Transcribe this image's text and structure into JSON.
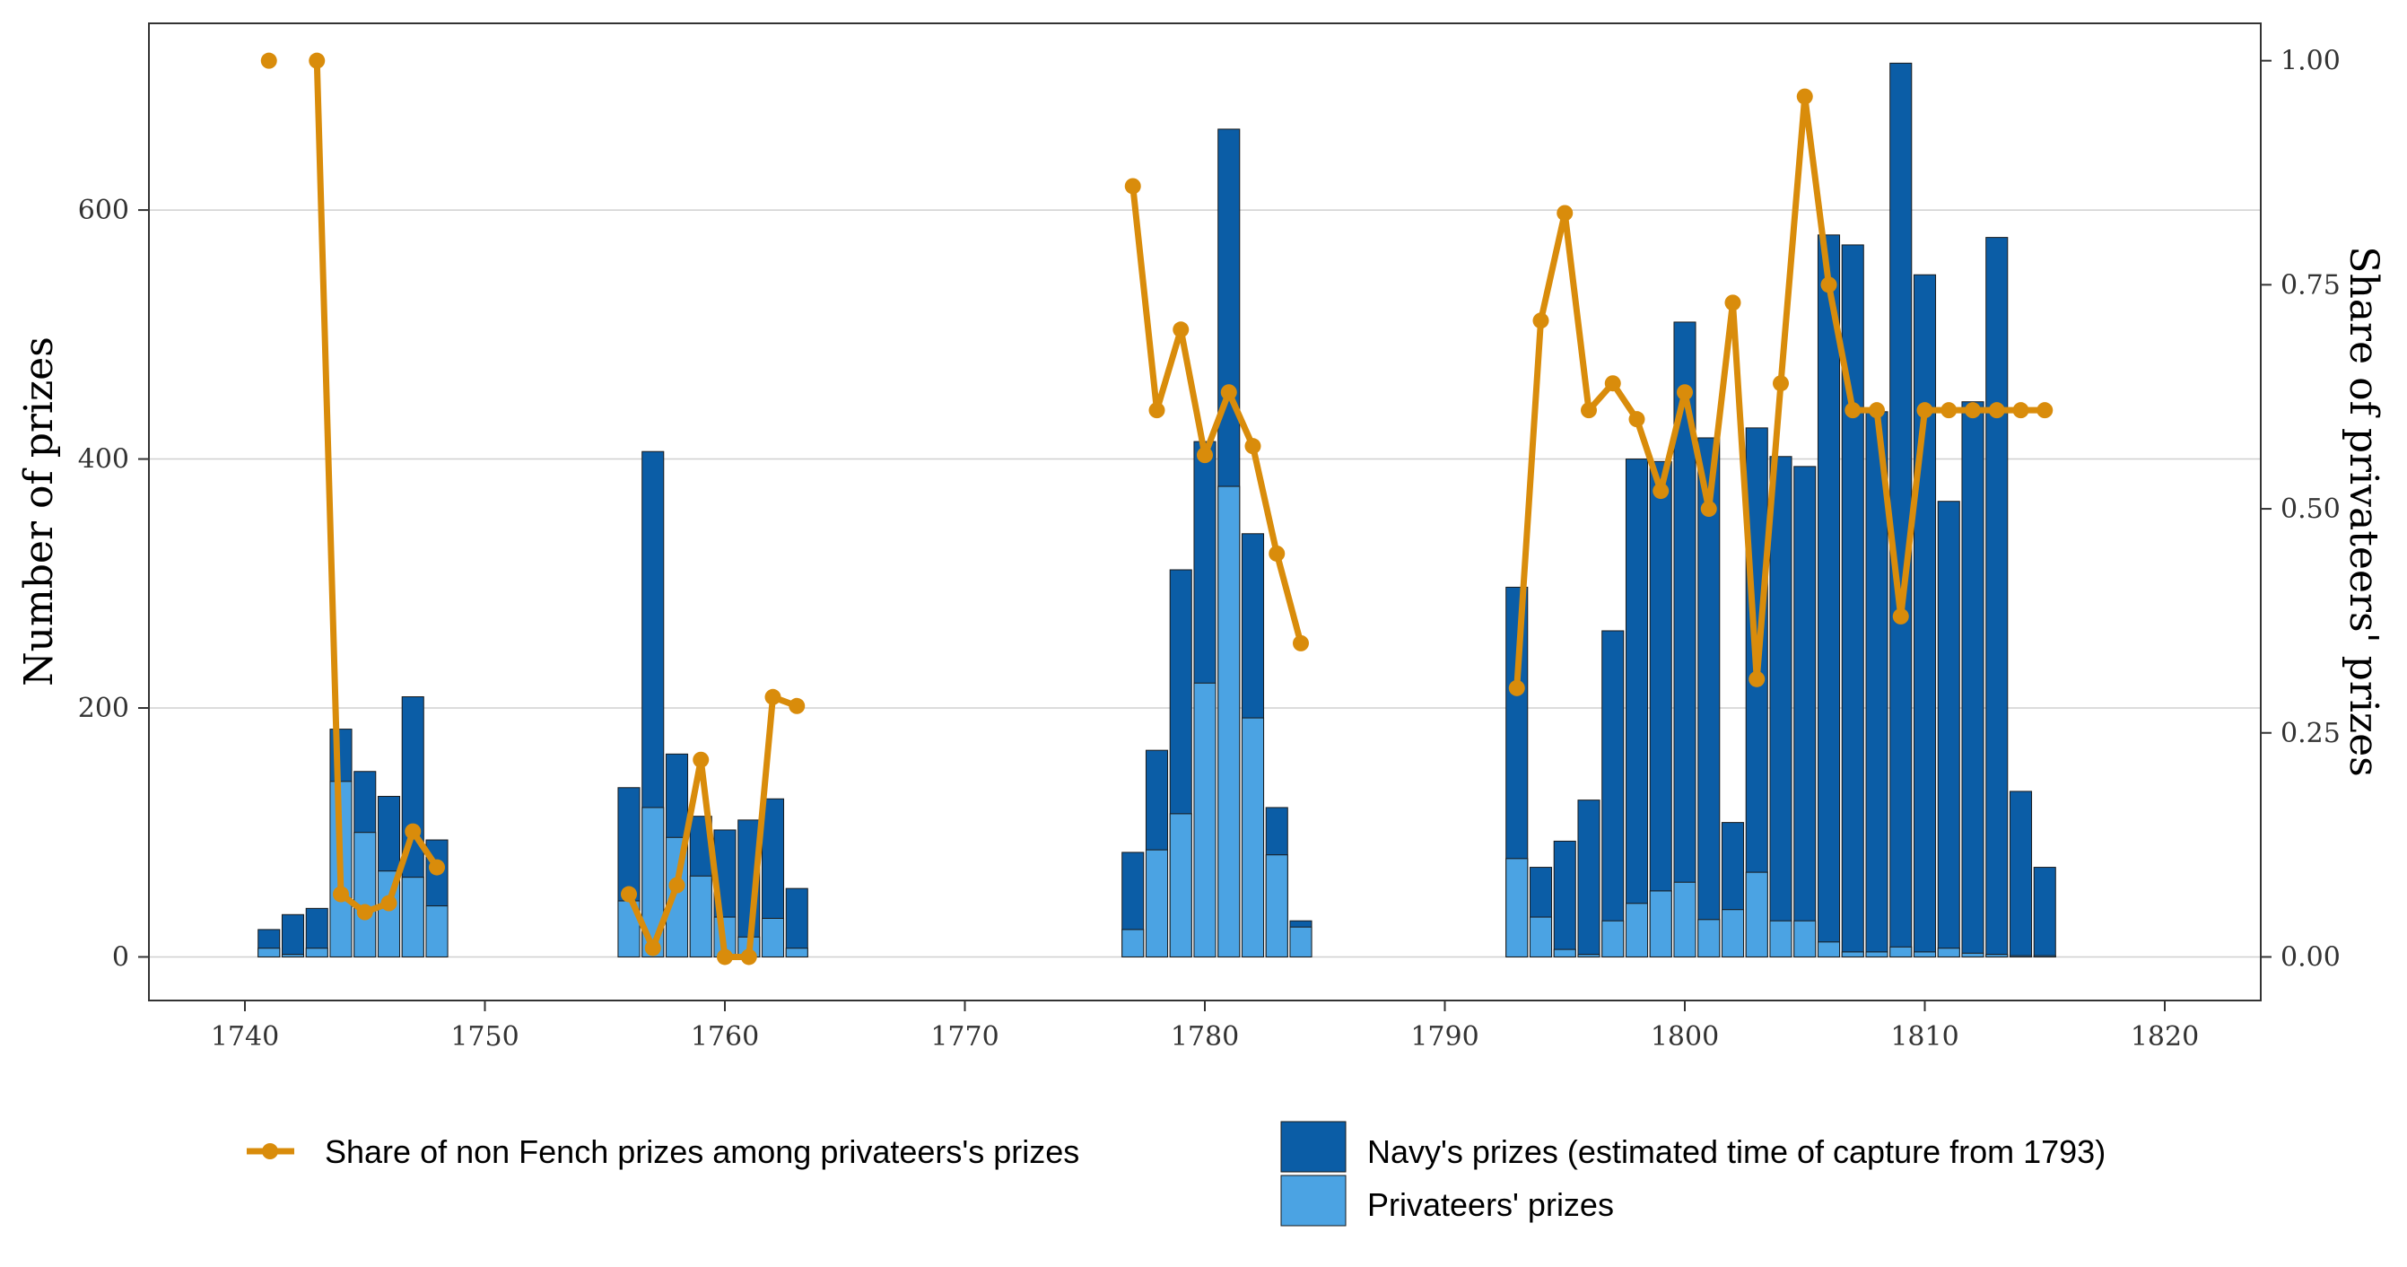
{
  "chart_data": {
    "type": "bar",
    "title": "",
    "xlabel": "",
    "ylabel": "Number of prizes",
    "y2label": "Share of privateers' prizes",
    "xlim": [
      1736,
      1824
    ],
    "ylim": [
      -35,
      750
    ],
    "y2lim": [
      -0.0486,
      1.0417
    ],
    "x_ticks": [
      1740,
      1750,
      1760,
      1770,
      1780,
      1790,
      1800,
      1810,
      1820
    ],
    "y_ticks": [
      0,
      200,
      400,
      600
    ],
    "y2_ticks": [
      0.0,
      0.25,
      0.5,
      0.75,
      1.0
    ],
    "y2_tick_labels": [
      "0.00",
      "0.25",
      "0.50",
      "0.75",
      "1.00"
    ],
    "grid": "horizontal",
    "legend_placement": "bottom",
    "colors": {
      "navy": "#0B5DA6",
      "privateers": "#4BA3E3",
      "share": "#D98C0B",
      "grid": "#D0D0D0",
      "bar_outline": "#1a1a1a"
    },
    "series": [
      {
        "name": "Navy's prizes (estimated time of capture from 1793)",
        "kind": "bar-total",
        "x": [
          1741,
          1742,
          1743,
          1744,
          1745,
          1746,
          1747,
          1748,
          1756,
          1757,
          1758,
          1759,
          1760,
          1761,
          1762,
          1763,
          1777,
          1778,
          1779,
          1780,
          1781,
          1782,
          1783,
          1784,
          1793,
          1794,
          1795,
          1796,
          1797,
          1798,
          1799,
          1800,
          1801,
          1802,
          1803,
          1804,
          1805,
          1806,
          1807,
          1808,
          1809,
          1810,
          1811,
          1812,
          1813,
          1814,
          1815
        ],
        "values": [
          22,
          34,
          39,
          183,
          149,
          129,
          209,
          94,
          136,
          406,
          163,
          113,
          102,
          110,
          127,
          55,
          84,
          166,
          311,
          414,
          665,
          340,
          120,
          29,
          297,
          72,
          93,
          126,
          262,
          400,
          398,
          510,
          417,
          108,
          425,
          402,
          394,
          580,
          572,
          438,
          718,
          548,
          366,
          446,
          578,
          133,
          72
        ]
      },
      {
        "name": "Privateers' prizes",
        "kind": "bar-sub",
        "x": [
          1741,
          1742,
          1743,
          1744,
          1745,
          1746,
          1747,
          1748,
          1756,
          1757,
          1758,
          1759,
          1760,
          1761,
          1762,
          1763,
          1777,
          1778,
          1779,
          1780,
          1781,
          1782,
          1783,
          1784,
          1793,
          1794,
          1795,
          1796,
          1797,
          1798,
          1799,
          1800,
          1801,
          1802,
          1803,
          1804,
          1805,
          1806,
          1807,
          1808,
          1809,
          1810,
          1811,
          1812,
          1813,
          1814,
          1815
        ],
        "values": [
          7,
          2,
          7,
          141,
          100,
          69,
          64,
          41,
          45,
          120,
          96,
          65,
          32,
          16,
          31,
          7,
          22,
          86,
          115,
          220,
          378,
          192,
          82,
          24,
          79,
          32,
          6,
          2,
          29,
          43,
          53,
          60,
          30,
          38,
          68,
          29,
          29,
          12,
          4,
          4,
          8,
          4,
          7,
          3,
          2,
          1,
          1
        ]
      },
      {
        "name": "Share of non Fench prizes among privateers's prizes",
        "kind": "line",
        "axis": "right",
        "segments": [
          {
            "x": [
              1741
            ],
            "y": [
              1.0
            ]
          },
          {
            "x": [
              1743,
              1744,
              1745,
              1746,
              1747,
              1748
            ],
            "y": [
              1.0,
              0.07,
              0.05,
              0.06,
              0.14,
              0.1
            ]
          },
          {
            "x": [
              1756,
              1757,
              1758,
              1759,
              1760,
              1761,
              1762,
              1763
            ],
            "y": [
              0.07,
              0.01,
              0.08,
              0.22,
              0.0,
              0.0,
              0.29,
              0.28
            ]
          },
          {
            "x": [
              1777,
              1778,
              1779,
              1780,
              1781,
              1782,
              1783,
              1784
            ],
            "y": [
              0.86,
              0.61,
              0.7,
              0.56,
              0.63,
              0.57,
              0.45,
              0.35
            ]
          },
          {
            "x": [
              1793,
              1794,
              1795,
              1796,
              1797,
              1798,
              1799,
              1800,
              1801,
              1802,
              1803,
              1804,
              1805,
              1806,
              1807,
              1808,
              1809,
              1810,
              1811,
              1812,
              1813,
              1814,
              1815
            ],
            "y": [
              0.3,
              0.71,
              0.83,
              0.61,
              0.64,
              0.6,
              0.52,
              0.63,
              0.5,
              0.73,
              0.31,
              0.64,
              0.96,
              0.75,
              0.61,
              0.61,
              0.38,
              0.61,
              0.61,
              0.61,
              0.61,
              0.61,
              0.61
            ]
          }
        ]
      }
    ],
    "legend": {
      "line_label": "Share of non Fench prizes among privateers's prizes",
      "navy_label": "Navy's prizes (estimated time of capture from 1793)",
      "privateers_label": "Privateers' prizes"
    }
  }
}
